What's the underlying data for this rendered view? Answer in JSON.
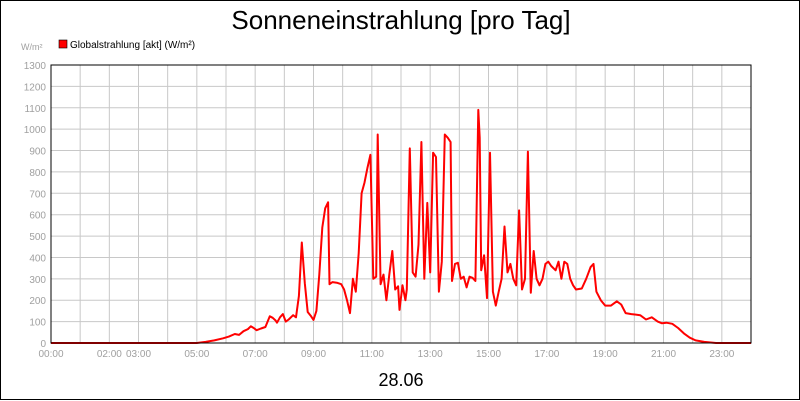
{
  "chart_data": {
    "type": "line",
    "title": "Sonneneinstrahlung [pro Tag]",
    "yunit": "W/m²",
    "xlabel": "28.06",
    "xlim": [
      0,
      24
    ],
    "ylim": [
      0,
      1300
    ],
    "yticks": [
      0,
      100,
      200,
      300,
      400,
      500,
      600,
      700,
      800,
      900,
      1000,
      1100,
      1200,
      1300
    ],
    "xticks": [
      {
        "t": 0,
        "label": "00:00"
      },
      {
        "t": 2,
        "label": "02:00"
      },
      {
        "t": 3,
        "label": "03:00"
      },
      {
        "t": 5,
        "label": "05:00"
      },
      {
        "t": 7,
        "label": "07:00"
      },
      {
        "t": 9,
        "label": "09:00"
      },
      {
        "t": 11,
        "label": "11:00"
      },
      {
        "t": 13,
        "label": "13:00"
      },
      {
        "t": 15,
        "label": "15:00"
      },
      {
        "t": 17,
        "label": "17:00"
      },
      {
        "t": 19,
        "label": "19:00"
      },
      {
        "t": 21,
        "label": "21:00"
      },
      {
        "t": 23,
        "label": "23:00"
      }
    ],
    "grid": true,
    "legend_position": "top-left",
    "series": [
      {
        "name": "Globalstrahlung [akt] (W/m²)",
        "color": "#ff0000",
        "points": [
          [
            0.0,
            0
          ],
          [
            5.0,
            0
          ],
          [
            5.3,
            5
          ],
          [
            5.6,
            12
          ],
          [
            5.9,
            22
          ],
          [
            6.1,
            30
          ],
          [
            6.3,
            42
          ],
          [
            6.45,
            38
          ],
          [
            6.6,
            55
          ],
          [
            6.75,
            65
          ],
          [
            6.85,
            78
          ],
          [
            6.95,
            70
          ],
          [
            7.05,
            60
          ],
          [
            7.2,
            68
          ],
          [
            7.35,
            75
          ],
          [
            7.5,
            125
          ],
          [
            7.6,
            118
          ],
          [
            7.7,
            105
          ],
          [
            7.75,
            95
          ],
          [
            7.85,
            120
          ],
          [
            7.95,
            135
          ],
          [
            8.05,
            100
          ],
          [
            8.15,
            110
          ],
          [
            8.3,
            130
          ],
          [
            8.4,
            120
          ],
          [
            8.5,
            220
          ],
          [
            8.6,
            470
          ],
          [
            8.7,
            280
          ],
          [
            8.8,
            145
          ],
          [
            8.9,
            128
          ],
          [
            9.0,
            108
          ],
          [
            9.1,
            150
          ],
          [
            9.2,
            320
          ],
          [
            9.3,
            540
          ],
          [
            9.4,
            630
          ],
          [
            9.5,
            658
          ],
          [
            9.55,
            275
          ],
          [
            9.65,
            285
          ],
          [
            9.8,
            282
          ],
          [
            9.95,
            275
          ],
          [
            10.05,
            250
          ],
          [
            10.15,
            200
          ],
          [
            10.25,
            140
          ],
          [
            10.35,
            300
          ],
          [
            10.45,
            240
          ],
          [
            10.55,
            420
          ],
          [
            10.65,
            700
          ],
          [
            10.75,
            750
          ],
          [
            10.85,
            820
          ],
          [
            10.95,
            880
          ],
          [
            11.05,
            300
          ],
          [
            11.15,
            310
          ],
          [
            11.2,
            975
          ],
          [
            11.3,
            275
          ],
          [
            11.4,
            320
          ],
          [
            11.5,
            200
          ],
          [
            11.6,
            320
          ],
          [
            11.7,
            430
          ],
          [
            11.8,
            250
          ],
          [
            11.9,
            265
          ],
          [
            11.95,
            155
          ],
          [
            12.05,
            270
          ],
          [
            12.15,
            200
          ],
          [
            12.2,
            250
          ],
          [
            12.3,
            910
          ],
          [
            12.4,
            330
          ],
          [
            12.5,
            310
          ],
          [
            12.6,
            460
          ],
          [
            12.7,
            940
          ],
          [
            12.8,
            300
          ],
          [
            12.9,
            655
          ],
          [
            13.0,
            330
          ],
          [
            13.1,
            890
          ],
          [
            13.2,
            870
          ],
          [
            13.3,
            240
          ],
          [
            13.4,
            380
          ],
          [
            13.5,
            975
          ],
          [
            13.6,
            960
          ],
          [
            13.7,
            940
          ],
          [
            13.75,
            290
          ],
          [
            13.85,
            370
          ],
          [
            13.95,
            375
          ],
          [
            14.05,
            300
          ],
          [
            14.15,
            310
          ],
          [
            14.25,
            260
          ],
          [
            14.35,
            310
          ],
          [
            14.45,
            305
          ],
          [
            14.55,
            290
          ],
          [
            14.65,
            1090
          ],
          [
            14.7,
            960
          ],
          [
            14.75,
            340
          ],
          [
            14.85,
            410
          ],
          [
            14.95,
            210
          ],
          [
            15.05,
            890
          ],
          [
            15.15,
            240
          ],
          [
            15.25,
            175
          ],
          [
            15.35,
            240
          ],
          [
            15.45,
            300
          ],
          [
            15.55,
            545
          ],
          [
            15.65,
            330
          ],
          [
            15.75,
            370
          ],
          [
            15.85,
            300
          ],
          [
            15.95,
            270
          ],
          [
            16.05,
            620
          ],
          [
            16.15,
            250
          ],
          [
            16.25,
            300
          ],
          [
            16.35,
            895
          ],
          [
            16.45,
            235
          ],
          [
            16.55,
            430
          ],
          [
            16.65,
            300
          ],
          [
            16.75,
            270
          ],
          [
            16.85,
            300
          ],
          [
            16.95,
            370
          ],
          [
            17.05,
            380
          ],
          [
            17.15,
            360
          ],
          [
            17.3,
            340
          ],
          [
            17.4,
            380
          ],
          [
            17.5,
            300
          ],
          [
            17.6,
            380
          ],
          [
            17.7,
            370
          ],
          [
            17.8,
            300
          ],
          [
            17.9,
            270
          ],
          [
            18.0,
            250
          ],
          [
            18.2,
            255
          ],
          [
            18.35,
            300
          ],
          [
            18.5,
            355
          ],
          [
            18.6,
            370
          ],
          [
            18.7,
            240
          ],
          [
            18.85,
            200
          ],
          [
            19.0,
            175
          ],
          [
            19.2,
            175
          ],
          [
            19.4,
            195
          ],
          [
            19.55,
            180
          ],
          [
            19.7,
            140
          ],
          [
            19.9,
            135
          ],
          [
            20.2,
            130
          ],
          [
            20.4,
            110
          ],
          [
            20.6,
            120
          ],
          [
            20.8,
            100
          ],
          [
            20.95,
            92
          ],
          [
            21.1,
            95
          ],
          [
            21.3,
            90
          ],
          [
            21.5,
            70
          ],
          [
            21.7,
            45
          ],
          [
            21.9,
            25
          ],
          [
            22.1,
            12
          ],
          [
            22.4,
            5
          ],
          [
            22.8,
            0
          ],
          [
            24.0,
            0
          ]
        ]
      }
    ]
  }
}
